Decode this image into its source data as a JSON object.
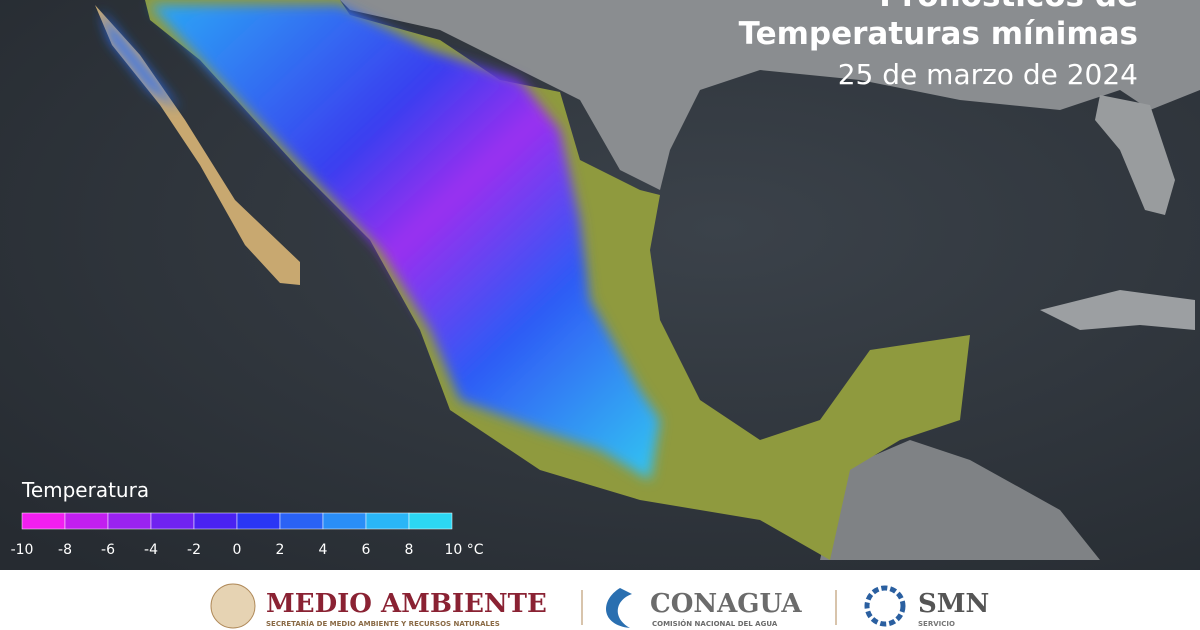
{
  "header": {
    "title_line1": "Pronósticos de",
    "title_line2": "Temperaturas mínimas",
    "date": "25 de marzo de 2024"
  },
  "legend": {
    "title": "Temperatura",
    "lim": [
      -10,
      10
    ],
    "ticks": [
      -10,
      -8,
      -6,
      -4,
      -2,
      0,
      2,
      4,
      6,
      8,
      {
        "value": 10,
        "label": "10 °C"
      }
    ],
    "colors": [
      "#f21ff0",
      "#c21ff0",
      "#9a22f0",
      "#7022f0",
      "#4a22f2",
      "#2a36f5",
      "#2a62f5",
      "#2a8ef7",
      "#2ab6f7",
      "#2cd7f3"
    ]
  },
  "footer": {
    "logo1": "MEDIO AMBIENTE",
    "logo1_sub": "SECRETARÍA DE MEDIO AMBIENTE Y RECURSOS NATURALES",
    "logo2": "CONAGUA",
    "logo2_sub": "COMISIÓN NACIONAL DEL AGUA",
    "logo3": "SMN",
    "logo3_sub": "SERVICIO"
  }
}
